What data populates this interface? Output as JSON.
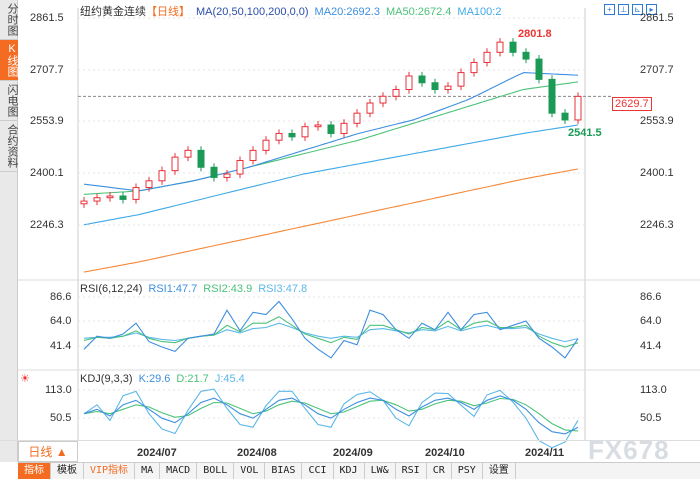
{
  "sidebar": {
    "items": [
      {
        "label": "分时图"
      },
      {
        "label": "K线图",
        "active": true
      },
      {
        "label": "闪电图"
      },
      {
        "label": "合约资料"
      }
    ]
  },
  "header": {
    "instrument": "纽约黄金连续",
    "period": "【日线】",
    "ma_params": "MA(20,50,100,200,0,0)",
    "ma20": "MA20:2692.3",
    "ma50": "MA50:2672.4",
    "ma100": "MA100:2"
  },
  "colors": {
    "up": "#e8303a",
    "down": "#1a9a55",
    "ma20": "#3d8fe0",
    "ma50": "#4cc27a",
    "ma100": "#3fa9e8",
    "ma200": "#f5883a",
    "rsi1": "#3d8fe0",
    "rsi2": "#4cc27a",
    "rsi3": "#5bb8e8"
  },
  "rsi": {
    "title": "RSI(6,12,24)",
    "rsi1": "RSI1:47.7",
    "rsi2": "RSI2:43.9",
    "rsi3": "RSI3:47.8",
    "ticks": [
      "86.6",
      "64.0",
      "41.4"
    ]
  },
  "kdj": {
    "title": "KDJ(9,3,3)",
    "k": "K:29.6",
    "d": "D:21.7",
    "j": "J:45.4",
    "ticks": [
      "113.0",
      "50.5"
    ]
  },
  "price_ticks": [
    "2861.5",
    "2707.7",
    "2553.9",
    "2400.1",
    "2246.3"
  ],
  "last_price": "2629.7",
  "high_label": "2801.8",
  "low_label": "2541.5",
  "dates": [
    "2024/07",
    "2024/08",
    "2024/09",
    "2024/10",
    "2024/11"
  ],
  "period_button": "日线 ▲",
  "tabs": [
    "指标",
    "模板",
    "VIP指标",
    "MA",
    "MACD",
    "BOLL",
    "VOL",
    "BIAS",
    "CCI",
    "KDJ",
    "LW&",
    "RSI",
    "CR",
    "PSY",
    "设置"
  ],
  "watermark": "FX678",
  "chart_data": {
    "type": "candlestick",
    "ylim": [
      2100,
      2870
    ],
    "close": [
      2320,
      2330,
      2335,
      2325,
      2360,
      2380,
      2410,
      2450,
      2470,
      2420,
      2390,
      2400,
      2440,
      2470,
      2500,
      2520,
      2510,
      2540,
      2545,
      2520,
      2550,
      2580,
      2610,
      2630,
      2650,
      2690,
      2670,
      2650,
      2660,
      2700,
      2730,
      2760,
      2790,
      2760,
      2740,
      2680,
      2580,
      2560,
      2629.7
    ],
    "ma20": [
      2370,
      2350,
      2380,
      2420,
      2470,
      2520,
      2560,
      2620,
      2700,
      2692.3
    ],
    "ma50": [
      2340,
      2350,
      2380,
      2420,
      2460,
      2500,
      2550,
      2600,
      2650,
      2672.4
    ],
    "ma100": [
      2250,
      2280,
      2320,
      2360,
      2400,
      2430,
      2460,
      2490,
      2520,
      2545
    ],
    "ma200": [
      2110,
      2140,
      2175,
      2210,
      2245,
      2280,
      2315,
      2350,
      2385,
      2415
    ],
    "rsi1": [
      38,
      50,
      48,
      52,
      62,
      45,
      40,
      36,
      48,
      50,
      52,
      74,
      55,
      72,
      70,
      82,
      66,
      48,
      38,
      30,
      46,
      42,
      74,
      70,
      56,
      48,
      62,
      56,
      72,
      56,
      70,
      72,
      56,
      60,
      64,
      48,
      40,
      30,
      47.7
    ],
    "rsi2": [
      46,
      49,
      48,
      50,
      55,
      48,
      45,
      44,
      48,
      50,
      51,
      60,
      54,
      62,
      62,
      68,
      60,
      52,
      48,
      44,
      49,
      47,
      60,
      60,
      56,
      52,
      58,
      56,
      64,
      56,
      62,
      64,
      58,
      58,
      60,
      50,
      44,
      40,
      43.9
    ],
    "rsi3": [
      48,
      49,
      49,
      50,
      53,
      49,
      47,
      46,
      48,
      50,
      51,
      56,
      53,
      57,
      58,
      62,
      58,
      53,
      50,
      48,
      50,
      49,
      56,
      57,
      55,
      53,
      56,
      55,
      59,
      55,
      58,
      60,
      57,
      57,
      58,
      52,
      48,
      45,
      47.8
    ],
    "k": [
      60,
      70,
      55,
      80,
      90,
      70,
      50,
      40,
      60,
      85,
      95,
      80,
      60,
      50,
      70,
      90,
      95,
      80,
      60,
      50,
      70,
      85,
      95,
      90,
      70,
      55,
      75,
      90,
      95,
      85,
      70,
      90,
      100,
      90,
      70,
      40,
      20,
      15,
      29.6
    ],
    "d": [
      60,
      65,
      60,
      70,
      80,
      75,
      62,
      52,
      56,
      72,
      85,
      84,
      72,
      60,
      66,
      80,
      88,
      84,
      72,
      60,
      64,
      76,
      88,
      90,
      80,
      66,
      70,
      82,
      90,
      88,
      78,
      84,
      94,
      92,
      80,
      60,
      38,
      24,
      21.7
    ],
    "j": [
      60,
      80,
      45,
      100,
      110,
      60,
      26,
      16,
      68,
      110,
      115,
      72,
      36,
      30,
      78,
      110,
      110,
      72,
      36,
      30,
      82,
      103,
      109,
      90,
      50,
      33,
      85,
      106,
      105,
      79,
      54,
      102,
      112,
      86,
      50,
      0,
      -16,
      -3,
      45.4
    ]
  }
}
